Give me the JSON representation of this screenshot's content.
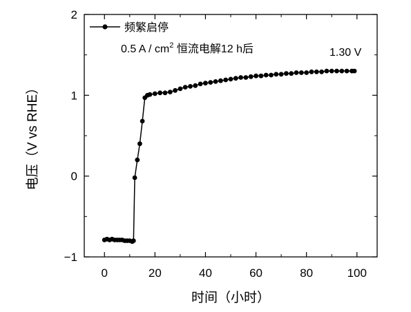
{
  "chart_data": {
    "type": "line",
    "title": "",
    "xlabel": "时间（小时）",
    "ylabel": "电压（V vs RHE）",
    "xlim": [
      -8,
      108
    ],
    "ylim": [
      -1,
      2
    ],
    "x_ticks": [
      0,
      20,
      40,
      60,
      80,
      100
    ],
    "y_ticks": [
      -1,
      0,
      1,
      2
    ],
    "x_tick_labels": [
      "0",
      "20",
      "40",
      "60",
      "80",
      "100"
    ],
    "y_tick_labels": [
      "−1",
      "0",
      "1",
      "2"
    ],
    "grid": false,
    "legend_position": "top-left",
    "series_color": "#000000",
    "series": [
      {
        "name": "频繁启停",
        "x": [
          0,
          1,
          2,
          3,
          4,
          5,
          6,
          7,
          8,
          9,
          10,
          11,
          11.5,
          12,
          13,
          14,
          15,
          16,
          17,
          18,
          20,
          22,
          24,
          26,
          28,
          30,
          32,
          34,
          36,
          38,
          40,
          42,
          44,
          46,
          48,
          50,
          52,
          54,
          56,
          58,
          60,
          62,
          64,
          66,
          68,
          70,
          72,
          74,
          76,
          78,
          80,
          82,
          84,
          86,
          88,
          90,
          92,
          94,
          96,
          98,
          99
        ],
        "y": [
          -0.79,
          -0.78,
          -0.79,
          -0.78,
          -0.79,
          -0.79,
          -0.79,
          -0.79,
          -0.8,
          -0.8,
          -0.8,
          -0.81,
          -0.8,
          -0.02,
          0.2,
          0.4,
          0.68,
          0.97,
          1.0,
          1.01,
          1.02,
          1.03,
          1.03,
          1.04,
          1.06,
          1.08,
          1.1,
          1.11,
          1.12,
          1.14,
          1.15,
          1.16,
          1.17,
          1.18,
          1.19,
          1.2,
          1.21,
          1.22,
          1.22,
          1.23,
          1.24,
          1.24,
          1.25,
          1.25,
          1.26,
          1.26,
          1.27,
          1.27,
          1.28,
          1.28,
          1.28,
          1.29,
          1.29,
          1.29,
          1.3,
          1.3,
          1.3,
          1.3,
          1.3,
          1.3,
          1.3
        ]
      }
    ],
    "annotations": {
      "condition_prefix": "0.5 A / cm",
      "condition_sup": "2",
      "condition_suffix": " 恒流电解12 h后",
      "final_voltage": "1.30 V"
    }
  }
}
